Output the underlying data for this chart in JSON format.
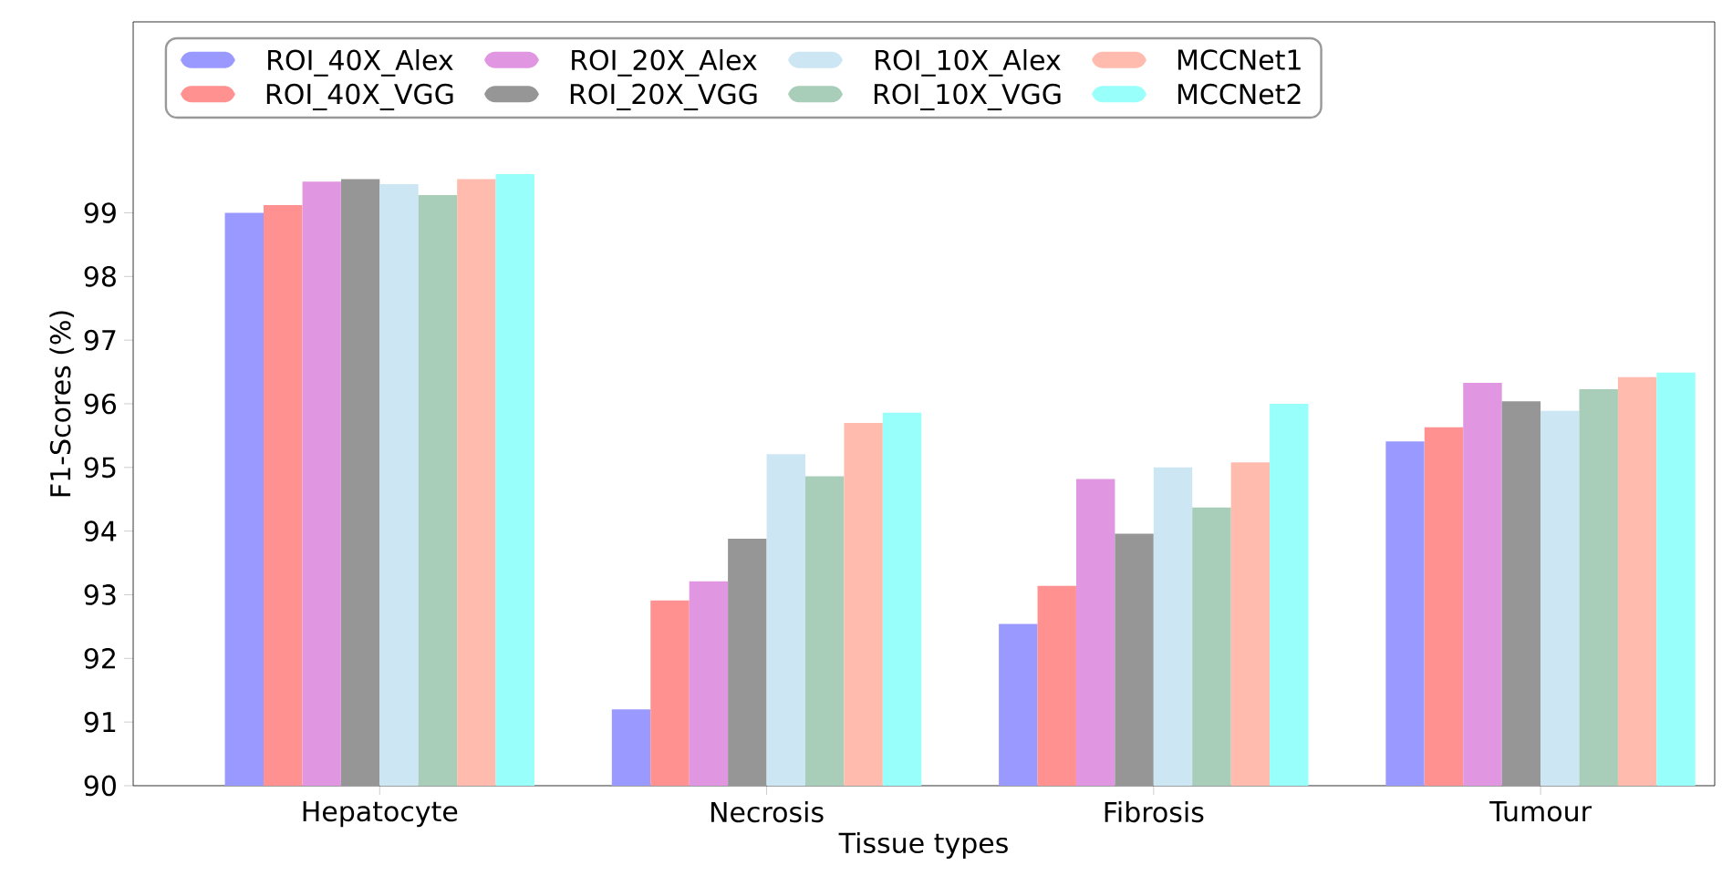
{
  "chart_data": {
    "type": "bar",
    "xlabel": "Tissue types",
    "ylabel": "F1-Scores (%)",
    "categories": [
      "Hepatocyte",
      "Necrosis",
      "Fibrosis",
      "Tumour"
    ],
    "series": [
      {
        "name": "ROI_40X_Alex",
        "color": "#9999ff",
        "values": [
          99.0,
          91.2,
          92.54,
          95.41
        ]
      },
      {
        "name": "ROI_40X_VGG",
        "color": "#ff9191",
        "values": [
          99.12,
          92.91,
          93.14,
          95.63
        ]
      },
      {
        "name": "ROI_20X_Alex",
        "color": "#e096e0",
        "values": [
          99.49,
          93.21,
          94.82,
          96.33
        ]
      },
      {
        "name": "ROI_20X_VGG",
        "color": "#969696",
        "values": [
          99.53,
          93.88,
          93.96,
          96.04
        ]
      },
      {
        "name": "ROI_10X_Alex",
        "color": "#cce6f4",
        "values": [
          99.45,
          95.21,
          95.0,
          95.89
        ]
      },
      {
        "name": "ROI_10X_VGG",
        "color": "#a8cdb8",
        "values": [
          99.28,
          94.86,
          94.37,
          96.23
        ]
      },
      {
        "name": "MCCNet1",
        "color": "#ffbcae",
        "values": [
          99.53,
          95.7,
          95.08,
          96.42
        ]
      },
      {
        "name": "MCCNet2",
        "color": "#99fffa",
        "values": [
          99.61,
          95.86,
          96.0,
          96.49
        ]
      }
    ],
    "ylim": [
      90,
      102
    ],
    "yticks": [
      90,
      91,
      92,
      93,
      94,
      95,
      96,
      97,
      98,
      99
    ],
    "legend": "top left"
  }
}
